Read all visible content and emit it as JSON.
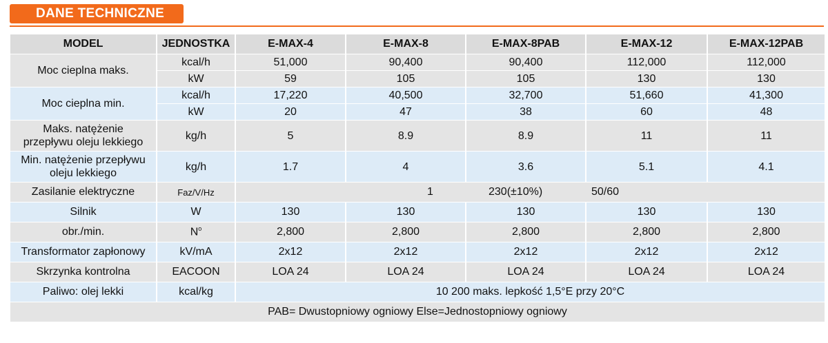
{
  "section_title": "DANE TECHNICZNE",
  "headers": [
    "MODEL",
    "JEDNOSTKA",
    "E-MAX-4",
    "E-MAX-8",
    "E-MAX-8PAB",
    "E-MAX-12",
    "E-MAX-12PAB"
  ],
  "rows": {
    "moc_maks": {
      "label": "Moc cieplna maks.",
      "kcal": {
        "unit": "kcal/h",
        "values": [
          "51,000",
          "90,400",
          "90,400",
          "112,000",
          "112,000"
        ]
      },
      "kw": {
        "unit": "kW",
        "values": [
          "59",
          "105",
          "105",
          "130",
          "130"
        ]
      }
    },
    "moc_min": {
      "label": "Moc cieplna min.",
      "kcal": {
        "unit": "kcal/h",
        "values": [
          "17,220",
          "40,500",
          "32,700",
          "51,660",
          "41,300"
        ]
      },
      "kw": {
        "unit": "kW",
        "values": [
          "20",
          "47",
          "38",
          "60",
          "48"
        ]
      }
    },
    "maks_przeplyw": {
      "label_line1": "Maks. natężenie",
      "label_line2": "przepływu oleju lekkiego",
      "unit": "kg/h",
      "values": [
        "5",
        "8.9",
        "8.9",
        "11",
        "11"
      ]
    },
    "min_przeplyw": {
      "label_line1": "Min. natężenie przepływu",
      "label_line2": "oleju lekkiego",
      "unit": "kg/h",
      "values": [
        "1.7",
        "4",
        "3.6",
        "5.1",
        "4.1"
      ]
    },
    "zasilanie": {
      "label": "Zasilanie elektryczne",
      "unit": "Faz/V/Hz",
      "phase": "1",
      "voltage": "230(±10%)",
      "freq": "50/60"
    },
    "silnik": {
      "label": "Silnik",
      "unit": "W",
      "values": [
        "130",
        "130",
        "130",
        "130",
        "130"
      ]
    },
    "obroty": {
      "label": "obr./min.",
      "unit": "N",
      "unit_sup": "o",
      "values": [
        "2,800",
        "2,800",
        "2,800",
        "2,800",
        "2,800"
      ]
    },
    "transformator": {
      "label": "Transformator zapłonowy",
      "unit": "kV/mA",
      "values": [
        "2x12",
        "2x12",
        "2x12",
        "2x12",
        "2x12"
      ]
    },
    "skrzynka": {
      "label": "Skrzynka kontrolna",
      "unit": "EACOON",
      "values": [
        "LOA 24",
        "LOA 24",
        "LOA 24",
        "LOA 24",
        "LOA 24"
      ]
    },
    "paliwo": {
      "label": "Paliwo: olej lekki",
      "unit": "kcal/kg",
      "value": "10 200 maks. lepkość 1,5°E przy 20°C"
    }
  },
  "footnote": "PAB= Dwustopniowy ogniowy Else=Jednostopniowy ogniowy",
  "colors": {
    "accent": "#f26a1b",
    "header_bg": "#dbdbdb",
    "blue_row": "#ddebf7",
    "gray_row": "#e4e4e4"
  }
}
